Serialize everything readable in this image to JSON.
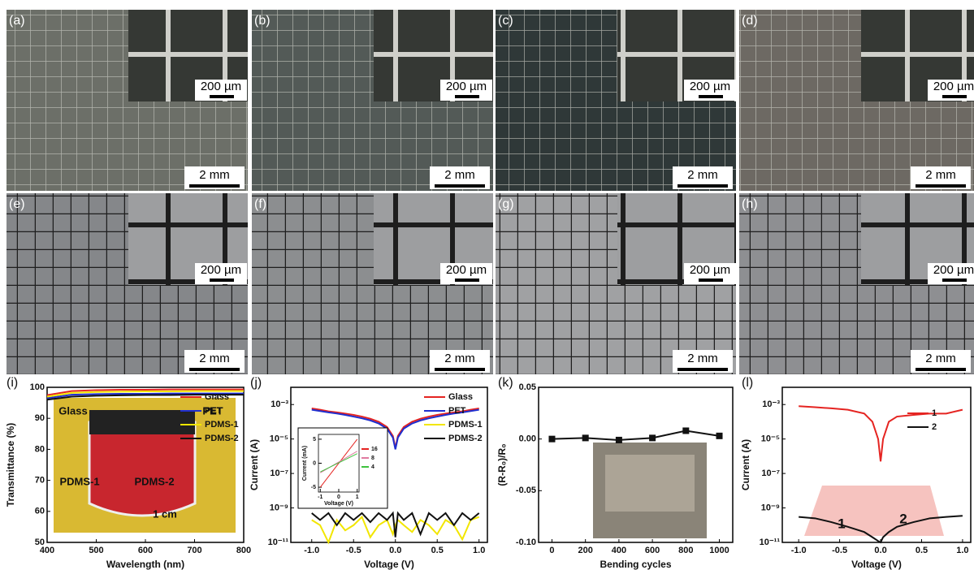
{
  "photos": [
    {
      "label": "(a)",
      "inset_scale": "200 µm",
      "scale": "2 mm"
    },
    {
      "label": "(b)",
      "inset_scale": "200 µm",
      "scale": "2 mm"
    },
    {
      "label": "(c)",
      "inset_scale": "200 µm",
      "scale": "2 mm"
    },
    {
      "label": "(d)",
      "inset_scale": "200 µm",
      "scale": "2 mm"
    },
    {
      "label": "(e)",
      "inset_scale": "200 µm",
      "scale": "2 mm"
    },
    {
      "label": "(f)",
      "inset_scale": "200 µm",
      "scale": "2 mm"
    },
    {
      "label": "(g)",
      "inset_scale": "200 µm",
      "scale": "2 mm"
    },
    {
      "label": "(h)",
      "inset_scale": "200 µm",
      "scale": "2 mm"
    }
  ],
  "chart_data": [
    {
      "type": "line",
      "label": "(i)",
      "xlabel": "Wavelength (nm)",
      "ylabel": "Transmittance (%)",
      "x": [
        400,
        450,
        500,
        550,
        600,
        650,
        700,
        750,
        800
      ],
      "series": [
        {
          "name": "Glass",
          "color": "#e52421",
          "values": [
            97.5,
            98.8,
            99.1,
            99.2,
            99.2,
            99.3,
            99.3,
            99.3,
            99.3
          ]
        },
        {
          "name": "PET",
          "color": "#1f2ecf",
          "values": [
            96.5,
            97.6,
            97.8,
            97.9,
            97.9,
            98.0,
            98.0,
            98.0,
            98.0
          ]
        },
        {
          "name": "PDMS-1",
          "color": "#f2e600",
          "values": [
            97.0,
            98.2,
            98.5,
            98.6,
            98.7,
            98.7,
            98.8,
            98.8,
            98.8
          ]
        },
        {
          "name": "PDMS-2",
          "color": "#111111",
          "values": [
            96.0,
            97.0,
            97.3,
            97.4,
            97.5,
            97.5,
            97.6,
            97.6,
            97.6
          ]
        }
      ],
      "xlim": [
        400,
        800
      ],
      "xticks": [
        400,
        500,
        600,
        700,
        800
      ],
      "ylim": [
        50,
        100
      ],
      "yticks": [
        50,
        60,
        70,
        80,
        90,
        100
      ],
      "legend": "upper right",
      "annotations": [
        "Glass",
        "PET",
        "PDMS-1",
        "PDMS-2",
        "1 cm"
      ]
    },
    {
      "type": "line",
      "label": "(j)",
      "xlabel": "Voltage (V)",
      "ylabel": "Current (A)",
      "log": true,
      "x": [
        -1.0,
        -0.9,
        -0.8,
        -0.7,
        -0.6,
        -0.5,
        -0.4,
        -0.3,
        -0.2,
        -0.1,
        -0.03,
        0.0,
        0.03,
        0.1,
        0.2,
        0.3,
        0.4,
        0.5,
        0.6,
        0.7,
        0.8,
        0.9,
        1.0
      ],
      "series": [
        {
          "name": "Glass",
          "color": "#e52421",
          "values": [
            0.0006,
            0.0005,
            0.0004,
            0.00035,
            0.0003,
            0.00025,
            0.0002,
            0.00015,
            0.0001,
            5e-05,
            1.5e-05,
            3e-06,
            1.5e-05,
            5e-05,
            0.0001,
            0.00015,
            0.0002,
            0.00025,
            0.0003,
            0.00035,
            0.0004,
            0.0005,
            0.0006
          ]
        },
        {
          "name": "PET",
          "color": "#1f2ecf",
          "values": [
            0.0005,
            0.00042,
            0.00035,
            0.0003,
            0.00025,
            0.0002,
            0.00016,
            0.00012,
            8e-05,
            4e-05,
            1.2e-05,
            2.5e-06,
            1.2e-05,
            4e-05,
            8e-05,
            0.00012,
            0.00016,
            0.0002,
            0.00025,
            0.0003,
            0.00035,
            0.00042,
            0.0005
          ]
        },
        {
          "name": "PDMS-1",
          "color": "#f2e600",
          "values": [
            2e-10,
            1e-10,
            1e-11,
            2e-10,
            5e-11,
            1e-10,
            3e-10,
            2e-11,
            1e-10,
            2e-10,
            3e-11,
            1e-10,
            2e-10,
            1e-10,
            4e-11,
            2e-10,
            1e-10,
            3e-11,
            2e-10,
            1e-10,
            1.5e-11,
            2e-10,
            3e-10
          ]
        },
        {
          "name": "PDMS-2",
          "color": "#111111",
          "values": [
            5e-10,
            2e-10,
            5e-10,
            1e-10,
            5e-10,
            2e-10,
            5e-10,
            1.5e-10,
            5e-10,
            2e-10,
            5e-10,
            2e-11,
            5e-10,
            2e-10,
            5e-10,
            3e-11,
            5e-10,
            2e-10,
            5e-10,
            1e-10,
            5e-10,
            2e-10,
            5e-10
          ]
        }
      ],
      "xlim": [
        -1.25,
        1.1
      ],
      "xticks": [
        {
          "value": -1.0,
          "label": "-1.0"
        },
        -0.5,
        {
          "value": 0.0,
          "label": "0.0"
        },
        0.5,
        {
          "value": 1.0,
          "label": "1.0"
        }
      ],
      "ylim": [
        1e-11,
        0.01
      ],
      "yticks": [
        {
          "value": 1e-11,
          "label": "10⁻¹¹"
        },
        {
          "value": 1e-09,
          "label": "10⁻⁹"
        },
        {
          "value": 1e-07,
          "label": "10⁻⁷"
        },
        {
          "value": 1e-05,
          "label": "10⁻⁵"
        },
        {
          "value": 0.001,
          "label": "10⁻³"
        }
      ],
      "legend": "upper right"
    },
    {
      "type": "line",
      "label": "(k)",
      "xlabel": "Bending cycles",
      "ylabel": "(R-R₀)/R₀",
      "markers": true,
      "x": [
        0,
        200,
        400,
        600,
        800,
        1000
      ],
      "series": [
        {
          "name": null,
          "color": "#111111",
          "values": [
            0.0,
            0.001,
            -0.001,
            0.001,
            0.008,
            0.003
          ]
        }
      ],
      "xlim": [
        -80,
        1080
      ],
      "xticks": [
        0,
        200,
        400,
        600,
        800,
        1000
      ],
      "ylim": [
        -0.1,
        0.05
      ],
      "yticks": [
        {
          "value": -0.1,
          "label": "-0.10"
        },
        -0.05,
        {
          "value": 0,
          "label": "0.00"
        },
        0.05
      ]
    },
    {
      "type": "line",
      "label": "(l)",
      "xlabel": "Voltage (V)",
      "ylabel": "Current (A)",
      "log": true,
      "x": [
        -1.0,
        -0.8,
        -0.6,
        -0.4,
        -0.2,
        -0.1,
        -0.03,
        0.0,
        0.03,
        0.1,
        0.2,
        0.4,
        0.6,
        0.8,
        1.0
      ],
      "series": [
        {
          "name": "1",
          "color": "#e52421",
          "values": [
            0.0008,
            0.0007,
            0.0006,
            0.0005,
            0.0003,
            0.0001,
            1e-05,
            5e-07,
            1e-05,
            0.0001,
            0.0002,
            0.00025,
            0.0003,
            0.0003,
            0.0005
          ]
        },
        {
          "name": "2",
          "color": "#111111",
          "values": [
            3e-10,
            2.5e-10,
            1.5e-10,
            8e-11,
            4e-11,
            2e-11,
            1.2e-11,
            1e-11,
            2e-11,
            4e-11,
            8e-11,
            1.5e-10,
            2.5e-10,
            3e-10,
            3.5e-10
          ]
        }
      ],
      "xlim": [
        -1.2,
        1.1
      ],
      "xticks": [
        {
          "value": -1.0,
          "label": "-1.0"
        },
        -0.5,
        {
          "value": 0.0,
          "label": "0.0"
        },
        0.5,
        {
          "value": 1.0,
          "label": "1.0"
        }
      ],
      "ylim": [
        1e-11,
        0.01
      ],
      "yticks": [
        {
          "value": 1e-11,
          "label": "10⁻¹¹"
        },
        {
          "value": 1e-09,
          "label": "10⁻⁹"
        },
        {
          "value": 1e-07,
          "label": "10⁻⁷"
        },
        {
          "value": 1e-05,
          "label": "10⁻⁵"
        },
        {
          "value": 0.001,
          "label": "10⁻³"
        }
      ],
      "legend": "center right",
      "annotations": [
        "1",
        "2"
      ]
    },
    {
      "type": "line",
      "xlabel": "Voltage (V)",
      "ylabel": "Current (mA)",
      "x": [
        -1,
        1
      ],
      "series": [
        {
          "name": "16",
          "color": "#e52421",
          "values": [
            -5,
            5
          ]
        },
        {
          "name": "8",
          "color": "#e07aa0",
          "values": [
            -2,
            2.5
          ]
        },
        {
          "name": "4",
          "color": "#3ec23e",
          "values": [
            -1.8,
            2
          ]
        }
      ],
      "xlim": [
        -1.1,
        1.1
      ],
      "xticks": [
        -1,
        0,
        1
      ],
      "ylim": [
        -6,
        6
      ],
      "yticks": [
        -5,
        0,
        5
      ],
      "legend": "right"
    }
  ]
}
